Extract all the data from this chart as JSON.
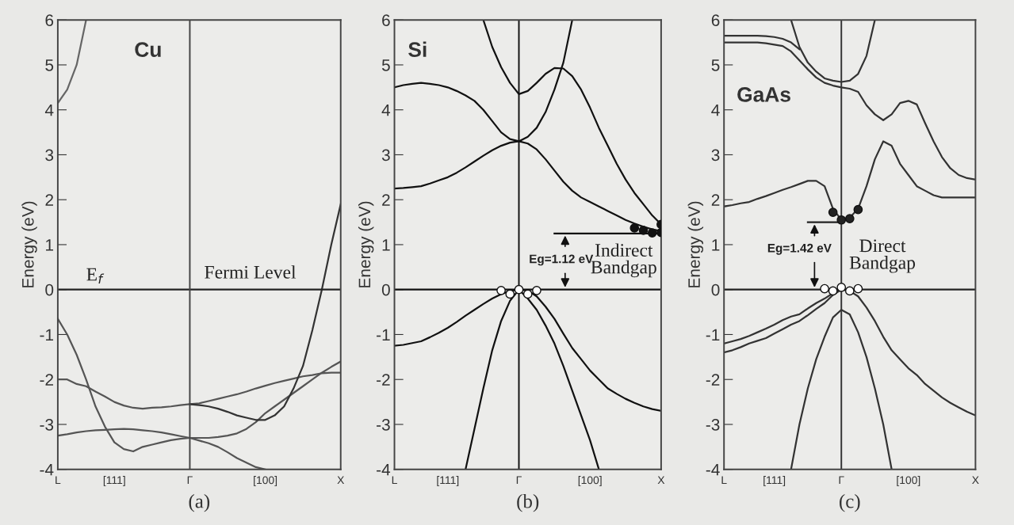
{
  "chart_data": [
    {
      "type": "line",
      "title": "Cu",
      "ylabel": "Energy (eV)",
      "ylim": [
        -4,
        6
      ],
      "yticks": [
        -4,
        -3,
        -2,
        -1,
        0,
        1,
        2,
        3,
        4,
        5,
        6
      ],
      "categories": [
        "L",
        null,
        null,
        null,
        null,
        null,
        "[111]",
        null,
        null,
        null,
        null,
        null,
        null,
        null,
        "Γ",
        null,
        null,
        null,
        null,
        null,
        null,
        null,
        "[100]",
        null,
        null,
        null,
        null,
        null,
        null,
        null,
        "X"
      ],
      "grid": false,
      "ref_lines": [
        {
          "axis": "y",
          "value": 0,
          "label": null,
          "color": "#222222"
        },
        {
          "axis": "x",
          "value": "Γ",
          "label": null,
          "color": "#444444"
        }
      ],
      "series": [
        {
          "color": "#666666",
          "values": [
            4.15,
            4.45,
            5.0,
            6.0,
            null,
            null,
            null,
            null,
            null,
            null,
            null,
            null,
            null,
            null,
            null,
            null,
            null,
            null,
            null,
            null,
            null,
            null,
            null,
            null,
            null,
            null,
            null,
            null,
            null,
            null,
            null
          ]
        },
        {
          "color": "#555555",
          "values": [
            -0.65,
            -1.0,
            -1.45,
            -2.0,
            -2.6,
            -3.05,
            -3.4,
            -3.55,
            -3.6,
            -3.5,
            -3.45,
            -3.4,
            -3.35,
            -3.32,
            -3.3,
            -3.3,
            -3.3,
            -3.28,
            -3.25,
            -3.2,
            -3.1,
            -2.95,
            -2.75,
            -2.6,
            -2.45,
            -2.3,
            -2.15,
            -2.0,
            -1.85,
            -1.72,
            -1.6
          ]
        },
        {
          "color": "#555555",
          "values": [
            -2.0,
            -2.0,
            -2.1,
            -2.15,
            -2.27,
            -2.38,
            -2.5,
            -2.58,
            -2.63,
            -2.65,
            -2.63,
            -2.62,
            -2.6,
            -2.57,
            -2.55,
            -2.53,
            -2.48,
            -2.43,
            -2.38,
            -2.33,
            -2.27,
            -2.2,
            -2.14,
            -2.08,
            -2.03,
            -1.98,
            -1.93,
            -1.9,
            -1.86,
            -1.85,
            -1.85
          ]
        },
        {
          "color": "#555555",
          "values": [
            -3.25,
            -3.22,
            -3.18,
            -3.15,
            -3.13,
            -3.12,
            -3.11,
            -3.1,
            -3.11,
            -3.13,
            -3.15,
            -3.18,
            -3.22,
            -3.26,
            -3.3,
            -3.36,
            -3.42,
            -3.5,
            -3.62,
            -3.75,
            -3.85,
            -3.95,
            -4.0,
            null,
            null,
            null,
            null,
            null,
            null,
            null,
            null
          ]
        },
        {
          "color": "#333333",
          "values": [
            null,
            null,
            null,
            null,
            null,
            null,
            null,
            null,
            null,
            null,
            null,
            null,
            null,
            null,
            -2.55,
            -2.57,
            -2.6,
            -2.65,
            -2.72,
            -2.8,
            -2.85,
            -2.9,
            -2.9,
            -2.8,
            -2.6,
            -2.2,
            -1.7,
            -0.9,
            0.0,
            1.0,
            1.9
          ]
        }
      ],
      "annotations": [
        "E$_{f}$",
        "Fermi Level",
        "(a)"
      ]
    },
    {
      "type": "line",
      "title": "Si",
      "ylabel": "Energy (eV)",
      "ylim": [
        -4,
        6
      ],
      "yticks": [
        -4,
        -3,
        -2,
        -1,
        0,
        1,
        2,
        3,
        4,
        5,
        6
      ],
      "categories": [
        "L",
        null,
        null,
        null,
        null,
        null,
        "[111]",
        null,
        null,
        null,
        null,
        null,
        null,
        null,
        "Γ",
        null,
        null,
        null,
        null,
        null,
        null,
        null,
        "[100]",
        null,
        null,
        null,
        null,
        null,
        null,
        null,
        "X"
      ],
      "grid": false,
      "ref_lines": [
        {
          "axis": "y",
          "value": 0,
          "label": null,
          "color": "#111111"
        },
        {
          "axis": "x",
          "value": "Γ",
          "label": null,
          "color": "#111111"
        }
      ],
      "series": [
        {
          "color": "#111111",
          "values": [
            null,
            null,
            null,
            null,
            null,
            null,
            null,
            null,
            null,
            null,
            6.0,
            5.4,
            4.95,
            4.6,
            4.35,
            4.42,
            4.6,
            4.8,
            4.93,
            4.92,
            4.75,
            4.45,
            4.05,
            3.6,
            3.2,
            2.8,
            2.45,
            2.15,
            1.9,
            1.65,
            1.45
          ]
        },
        {
          "color": "#111111",
          "values": [
            4.5,
            4.55,
            4.58,
            4.6,
            4.58,
            4.55,
            4.5,
            4.42,
            4.32,
            4.2,
            4.0,
            3.75,
            3.5,
            3.35,
            3.3,
            3.4,
            3.6,
            3.95,
            4.45,
            5.05,
            6.0,
            null,
            null,
            null,
            null,
            null,
            null,
            null,
            null,
            null,
            null
          ]
        },
        {
          "color": "#111111",
          "values": [
            2.25,
            2.26,
            2.28,
            2.3,
            2.36,
            2.43,
            2.5,
            2.6,
            2.72,
            2.85,
            2.98,
            3.1,
            3.2,
            3.27,
            3.3,
            3.25,
            3.12,
            2.9,
            2.65,
            2.4,
            2.2,
            2.05,
            1.95,
            1.85,
            1.75,
            1.65,
            1.55,
            1.47,
            1.4,
            1.34,
            1.3
          ]
        },
        {
          "color": "#111111",
          "values": [
            -1.25,
            -1.23,
            -1.19,
            -1.15,
            -1.06,
            -0.96,
            -0.85,
            -0.72,
            -0.58,
            -0.45,
            -0.32,
            -0.2,
            -0.1,
            -0.03,
            0.0,
            -0.02,
            -0.15,
            -0.38,
            -0.65,
            -0.98,
            -1.3,
            -1.55,
            -1.8,
            -2.0,
            -2.2,
            -2.32,
            -2.43,
            -2.52,
            -2.6,
            -2.66,
            -2.7
          ]
        },
        {
          "color": "#111111",
          "values": [
            null,
            null,
            null,
            null,
            null,
            null,
            null,
            null,
            -4.0,
            -3.1,
            -2.2,
            -1.35,
            -0.7,
            -0.25,
            0.0,
            -0.2,
            -0.45,
            -0.8,
            -1.2,
            -1.7,
            -2.25,
            -2.8,
            -3.35,
            -4.0,
            null,
            null,
            null,
            null,
            null,
            null,
            null
          ]
        },
        {
          "color": "#111111",
          "values": [
            null,
            null,
            null,
            null,
            null,
            null,
            null,
            null,
            null,
            null,
            null,
            null,
            null,
            null,
            null,
            null,
            null,
            null,
            1.25,
            1.25,
            1.25,
            1.25,
            1.25,
            1.25,
            1.25,
            1.25,
            1.25,
            1.25,
            1.25,
            1.25,
            1.25
          ]
        },
        {
          "type": "scatter",
          "marker": "circle",
          "color": "#111111",
          "values": [
            null,
            null,
            null,
            null,
            null,
            null,
            null,
            null,
            null,
            null,
            null,
            null,
            null,
            null,
            null,
            null,
            null,
            null,
            null,
            null,
            null,
            null,
            null,
            null,
            null,
            null,
            null,
            1.37,
            1.32,
            1.26,
            1.27
          ]
        },
        {
          "type": "scatter",
          "marker": "circle",
          "color": "#111111",
          "values": [
            null,
            null,
            null,
            null,
            null,
            null,
            null,
            null,
            null,
            null,
            null,
            null,
            null,
            null,
            null,
            null,
            null,
            null,
            null,
            null,
            null,
            null,
            null,
            null,
            null,
            null,
            null,
            null,
            null,
            null,
            1.45
          ]
        },
        {
          "type": "scatter",
          "marker": "circle",
          "color": "#ffffff",
          "values": [
            null,
            null,
            null,
            null,
            null,
            null,
            null,
            null,
            null,
            null,
            null,
            null,
            null,
            -0.1,
            0.0,
            -0.1,
            null,
            null,
            null,
            null,
            null,
            null,
            null,
            null,
            null,
            null,
            null,
            null,
            null,
            null,
            null
          ]
        },
        {
          "type": "scatter",
          "marker": "circle",
          "color": "#ffffff",
          "values": [
            null,
            null,
            null,
            null,
            null,
            null,
            null,
            null,
            null,
            null,
            null,
            null,
            -0.02,
            null,
            null,
            null,
            -0.02,
            null,
            null,
            null,
            null,
            null,
            null,
            null,
            null,
            null,
            null,
            null,
            null,
            null,
            null
          ]
        }
      ],
      "annotations": [
        "Eg=1.12 eV",
        "Indirect\nBandgap",
        "(b)"
      ]
    },
    {
      "type": "line",
      "title": "GaAs",
      "ylabel": "Energy (eV)",
      "ylim": [
        -4,
        6
      ],
      "yticks": [
        -4,
        -3,
        -2,
        -1,
        0,
        1,
        2,
        3,
        4,
        5,
        6
      ],
      "categories": [
        "L",
        null,
        null,
        null,
        null,
        null,
        "[111]",
        null,
        null,
        null,
        null,
        null,
        null,
        null,
        "Γ",
        null,
        null,
        null,
        null,
        null,
        null,
        null,
        "[100]",
        null,
        null,
        null,
        null,
        null,
        null,
        null,
        "X"
      ],
      "grid": false,
      "ref_lines": [
        {
          "axis": "y",
          "value": 0,
          "label": null,
          "color": "#222222"
        },
        {
          "axis": "x",
          "value": "Γ",
          "label": null,
          "color": "#333333"
        }
      ],
      "series": [
        {
          "color": "#333333",
          "values": [
            null,
            null,
            null,
            null,
            null,
            null,
            null,
            null,
            6.0,
            5.4,
            5.05,
            4.85,
            4.7,
            4.65,
            4.62,
            4.65,
            4.8,
            5.2,
            6.0,
            null,
            null,
            null,
            null,
            null,
            null,
            null,
            null,
            null,
            null,
            null,
            null
          ]
        },
        {
          "color": "#333333",
          "values": [
            5.65,
            5.65,
            5.65,
            5.65,
            5.65,
            5.64,
            5.62,
            5.58,
            5.5,
            5.35,
            null,
            null,
            null,
            null,
            null,
            null,
            null,
            null,
            null,
            null,
            null,
            null,
            null,
            null,
            null,
            null,
            null,
            null,
            null,
            null,
            null
          ]
        },
        {
          "color": "#333333",
          "values": [
            5.5,
            5.5,
            5.5,
            5.5,
            5.5,
            5.48,
            5.45,
            5.42,
            5.3,
            5.1,
            4.9,
            4.72,
            4.6,
            4.54,
            4.5,
            4.47,
            4.4,
            4.1,
            3.9,
            3.77,
            3.9,
            4.15,
            4.2,
            4.12,
            3.7,
            3.3,
            2.95,
            2.7,
            2.55,
            2.48,
            2.45
          ]
        },
        {
          "color": "#333333",
          "values": [
            1.85,
            1.88,
            1.92,
            1.95,
            2.02,
            2.08,
            2.15,
            2.22,
            2.28,
            2.35,
            2.42,
            2.42,
            2.3,
            1.8,
            1.55,
            1.6,
            1.8,
            2.3,
            2.9,
            3.3,
            3.2,
            2.8,
            2.55,
            2.3,
            2.2,
            2.1,
            2.05,
            2.05,
            2.05,
            2.05,
            2.05
          ]
        },
        {
          "color": "#333333",
          "values": [
            -1.2,
            -1.15,
            -1.1,
            -1.03,
            -0.95,
            -0.87,
            -0.78,
            -0.68,
            -0.6,
            -0.55,
            -0.42,
            -0.3,
            -0.2,
            -0.08,
            0.0,
            -0.03,
            -0.15,
            -0.4,
            -0.7,
            -1.05,
            -1.35,
            -1.55,
            -1.75,
            -1.9,
            -2.1,
            -2.25,
            -2.4,
            -2.52,
            -2.62,
            -2.72,
            -2.8
          ]
        },
        {
          "color": "#333333",
          "values": [
            -1.4,
            -1.35,
            -1.28,
            -1.2,
            -1.14,
            -1.08,
            -0.98,
            -0.88,
            -0.78,
            -0.7,
            -0.57,
            -0.43,
            -0.3,
            -0.12,
            0.0,
            null,
            null,
            null,
            null,
            null,
            null,
            null,
            null,
            null,
            null,
            null,
            null,
            null,
            null,
            null,
            null
          ]
        },
        {
          "color": "#333333",
          "values": [
            null,
            null,
            null,
            null,
            null,
            null,
            null,
            null,
            -4.0,
            -3.0,
            -2.2,
            -1.55,
            -1.05,
            -0.62,
            -0.45,
            -0.55,
            -0.95,
            -1.5,
            -2.2,
            -3.0,
            -4.0,
            null,
            null,
            null,
            null,
            null,
            null,
            null,
            null,
            null,
            null
          ]
        },
        {
          "color": "#222222",
          "values": [
            null,
            null,
            null,
            null,
            null,
            null,
            null,
            null,
            null,
            null,
            1.5,
            1.5,
            1.5,
            1.5,
            1.5,
            null,
            null,
            null,
            null,
            null,
            null,
            null,
            null,
            null,
            null,
            null,
            null,
            null,
            null,
            null,
            null
          ]
        },
        {
          "type": "scatter",
          "marker": "circle",
          "color": "#222222",
          "values": [
            null,
            null,
            null,
            null,
            null,
            null,
            null,
            null,
            null,
            null,
            null,
            null,
            null,
            1.72,
            1.55,
            1.58,
            1.78,
            null,
            null,
            null,
            null,
            null,
            null,
            null,
            null,
            null,
            null,
            null,
            null,
            null,
            null
          ]
        },
        {
          "type": "scatter",
          "marker": "circle",
          "color": "#ffffff",
          "values": [
            null,
            null,
            null,
            null,
            null,
            null,
            null,
            null,
            null,
            null,
            null,
            null,
            null,
            -0.03,
            0.05,
            -0.03,
            null,
            null,
            null,
            null,
            null,
            null,
            null,
            null,
            null,
            null,
            null,
            null,
            null,
            null,
            null
          ]
        },
        {
          "type": "scatter",
          "marker": "circle",
          "color": "#ffffff",
          "values": [
            null,
            null,
            null,
            null,
            null,
            null,
            null,
            null,
            null,
            null,
            null,
            null,
            0.02,
            null,
            null,
            null,
            0.02,
            null,
            null,
            null,
            null,
            null,
            null,
            null,
            null,
            null,
            null,
            null,
            null,
            null,
            null
          ]
        }
      ],
      "annotations": [
        "Eg=1.42 eV",
        "Direct\nBandgap",
        "(c)"
      ]
    }
  ]
}
